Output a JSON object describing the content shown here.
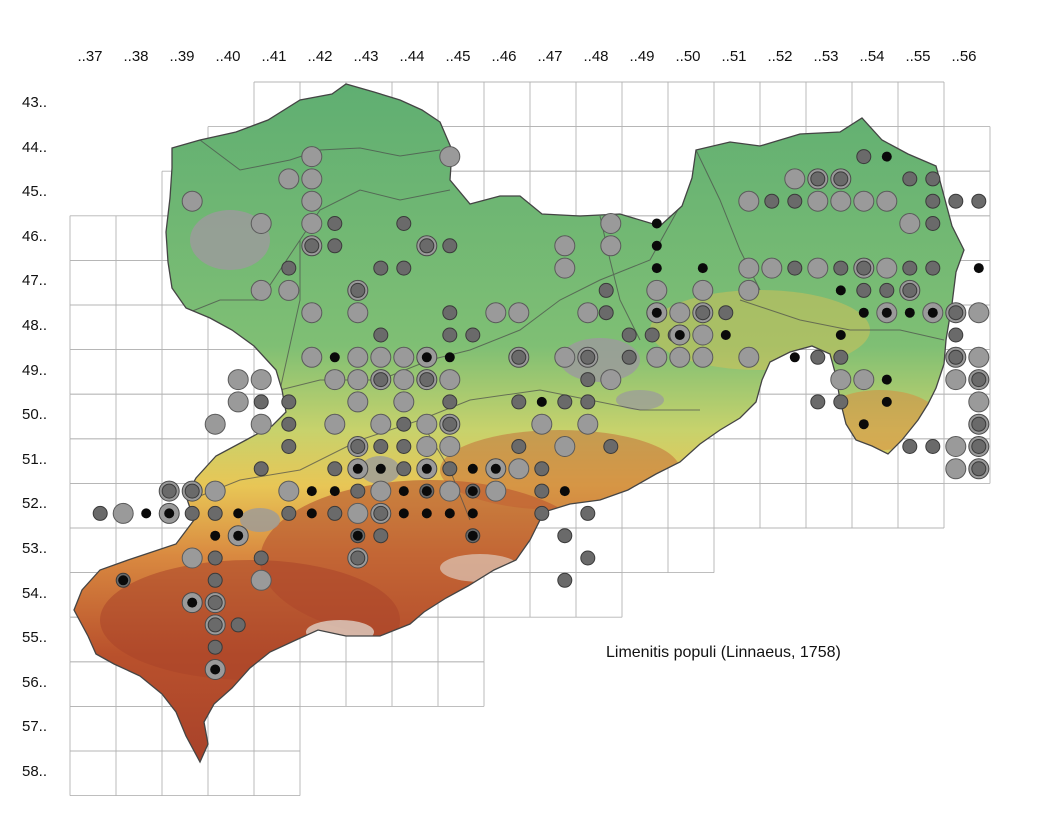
{
  "figure": {
    "species_caption": "Limenitis populi (Linnaeus, 1758)",
    "column_labels": [
      "..37",
      "..38",
      "..39",
      "..40",
      "..41",
      "..42",
      "..43",
      "..44",
      "..45",
      "..46",
      "..47",
      "..48",
      "..49",
      "..50",
      "..51",
      "..52",
      "..53",
      "..54",
      "..55",
      "..56"
    ],
    "row_labels": [
      "43..",
      "44..",
      "45..",
      "46..",
      "47..",
      "48..",
      "49..",
      "50..",
      "51..",
      "52..",
      "53..",
      "54..",
      "55..",
      "56..",
      "57..",
      "58.."
    ]
  },
  "legend_colors": {
    "marker_large_light": "#9a9a9a",
    "marker_medium": "#6a6a6a",
    "marker_small_dark": "#0a0a0a",
    "terrain_low": "#5aae6e",
    "terrain_mid": "#c9d36a",
    "terrain_high": "#b8472a",
    "urban": "#9a9a9a"
  }
}
